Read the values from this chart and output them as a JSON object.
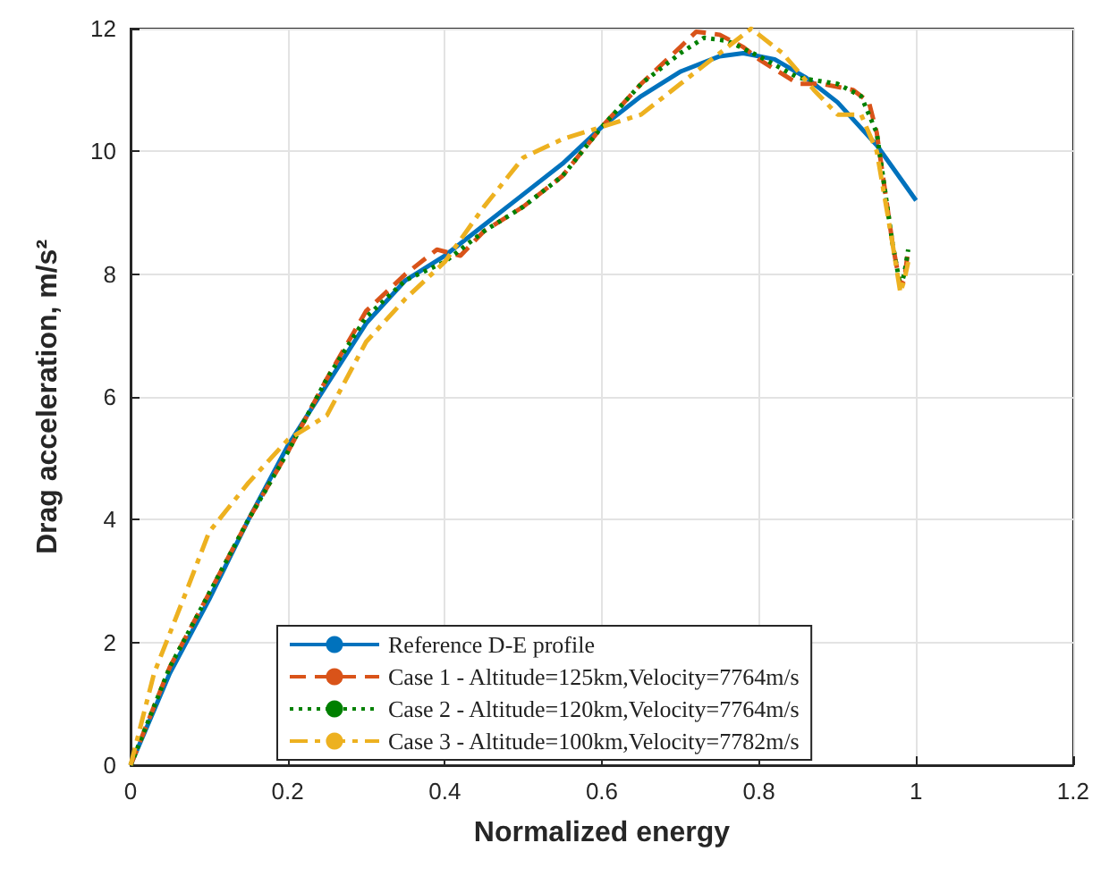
{
  "chart_data": {
    "type": "line",
    "xlabel": "Normalized energy",
    "ylabel": "Drag acceleration, m/s²",
    "xlim": [
      0,
      1.2
    ],
    "xticks": [
      0,
      0.2,
      0.4,
      0.6,
      0.8,
      1,
      1.2
    ],
    "ylim": [
      0,
      12
    ],
    "yticks": [
      0,
      2,
      4,
      6,
      8,
      10,
      12
    ],
    "grid": true,
    "legend": "bottom",
    "marker": "none",
    "series": [
      {
        "name": "Reference D-E profile",
        "color": "#0072bd",
        "line_style": "solid",
        "x": [
          0,
          0.05,
          0.1,
          0.15,
          0.2,
          0.25,
          0.3,
          0.35,
          0.4,
          0.45,
          0.5,
          0.55,
          0.6,
          0.65,
          0.7,
          0.75,
          0.78,
          0.82,
          0.86,
          0.9,
          0.95,
          1.0
        ],
        "values": [
          0,
          1.5,
          2.7,
          4.0,
          5.2,
          6.2,
          7.2,
          7.9,
          8.3,
          8.8,
          9.3,
          9.8,
          10.4,
          10.9,
          11.3,
          11.55,
          11.6,
          11.5,
          11.2,
          10.8,
          10.1,
          9.2
        ]
      },
      {
        "name": "Case 1 - Altitude=125km,Velocity=7764m/s",
        "color": "#d95319",
        "line_style": "dashed",
        "x": [
          0,
          0.05,
          0.1,
          0.15,
          0.2,
          0.25,
          0.3,
          0.35,
          0.39,
          0.42,
          0.45,
          0.5,
          0.55,
          0.6,
          0.65,
          0.7,
          0.72,
          0.75,
          0.78,
          0.8,
          0.85,
          0.88,
          0.92,
          0.94,
          0.95,
          0.97,
          0.98,
          0.985,
          0.99
        ],
        "values": [
          0,
          1.6,
          2.8,
          4.0,
          5.1,
          6.3,
          7.4,
          8.0,
          8.4,
          8.3,
          8.7,
          9.1,
          9.6,
          10.4,
          11.1,
          11.7,
          11.95,
          11.9,
          11.7,
          11.5,
          11.1,
          11.1,
          11.0,
          10.8,
          10.3,
          8.5,
          7.8,
          7.9,
          8.4
        ]
      },
      {
        "name": "Case 2 - Altitude=120km,Velocity=7764m/s",
        "color": "#008000",
        "line_style": "dotted",
        "x": [
          0,
          0.05,
          0.1,
          0.15,
          0.2,
          0.25,
          0.3,
          0.35,
          0.4,
          0.45,
          0.5,
          0.55,
          0.6,
          0.65,
          0.7,
          0.73,
          0.76,
          0.8,
          0.85,
          0.9,
          0.93,
          0.95,
          0.97,
          0.98,
          0.985,
          0.99
        ],
        "values": [
          0,
          1.6,
          2.8,
          4.0,
          5.1,
          6.3,
          7.3,
          7.9,
          8.2,
          8.7,
          9.1,
          9.6,
          10.4,
          11.1,
          11.6,
          11.85,
          11.8,
          11.55,
          11.2,
          11.1,
          10.9,
          10.3,
          8.5,
          7.8,
          8.0,
          8.4
        ]
      },
      {
        "name": "Case 3 - Altitude=100km,Velocity=7782m/s",
        "color": "#edb120",
        "line_style": "dashdot",
        "x": [
          0,
          0.03,
          0.07,
          0.1,
          0.15,
          0.2,
          0.25,
          0.3,
          0.35,
          0.4,
          0.45,
          0.5,
          0.55,
          0.6,
          0.65,
          0.7,
          0.75,
          0.79,
          0.83,
          0.87,
          0.9,
          0.93,
          0.95,
          0.97,
          0.98,
          0.985,
          0.99
        ],
        "values": [
          0,
          1.5,
          2.8,
          3.8,
          4.6,
          5.3,
          5.7,
          6.9,
          7.6,
          8.2,
          9.1,
          9.9,
          10.2,
          10.4,
          10.6,
          11.1,
          11.6,
          12.0,
          11.6,
          11.0,
          10.6,
          10.6,
          10.0,
          8.5,
          7.7,
          7.9,
          8.2
        ]
      }
    ]
  }
}
